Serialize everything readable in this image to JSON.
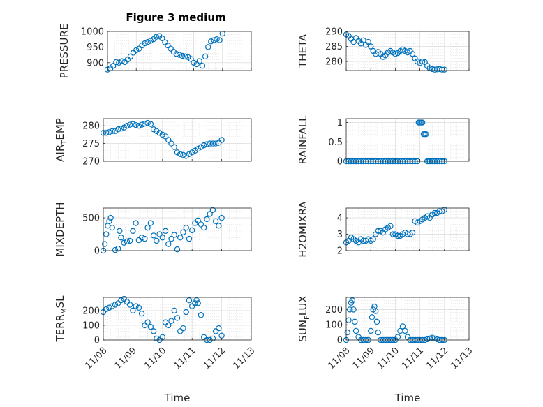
{
  "figure": {
    "title": "Figure 3 medium",
    "marker_color": "#0072BD",
    "marker": "circle",
    "grid": "on (major and minor)"
  },
  "chart_data": [
    {
      "id": "pressure",
      "type": "scatter",
      "ylabel": "PRESSURE",
      "xlim": [
        "11/08",
        "11/13"
      ],
      "ylim": [
        875,
        1000
      ],
      "yticks": [
        "900",
        "950",
        "1000"
      ],
      "ytick_values": [
        900,
        950,
        1000
      ],
      "xticks": [],
      "xlabel": "",
      "x": [
        0.0,
        0.1,
        0.2,
        0.3,
        0.4,
        0.5,
        0.6,
        0.7,
        0.8,
        0.9,
        1.0,
        1.1,
        1.2,
        1.3,
        1.4,
        1.5,
        1.6,
        1.7,
        1.8,
        1.9,
        2.0,
        2.1,
        2.2,
        2.3,
        2.4,
        2.5,
        2.6,
        2.7,
        2.8,
        2.9,
        3.0,
        3.1,
        3.2,
        3.3,
        3.4,
        3.5,
        3.6,
        3.7,
        3.8,
        3.9,
        4.0
      ],
      "y": [
        878,
        882,
        890,
        902,
        900,
        905,
        902,
        910,
        920,
        932,
        940,
        945,
        955,
        962,
        966,
        970,
        975,
        983,
        985,
        978,
        965,
        955,
        945,
        935,
        928,
        925,
        922,
        920,
        918,
        912,
        900,
        895,
        905,
        890,
        920,
        950,
        968,
        972,
        975,
        972,
        993
      ]
    },
    {
      "id": "theta",
      "type": "scatter",
      "ylabel": "THETA",
      "xlim": [
        "11/08",
        "11/13"
      ],
      "ylim": [
        277,
        290
      ],
      "yticks": [
        "280",
        "285",
        "290"
      ],
      "ytick_values": [
        280,
        285,
        290
      ],
      "xticks": [],
      "xlabel": "",
      "x": [
        0.0,
        0.1,
        0.2,
        0.3,
        0.4,
        0.5,
        0.6,
        0.7,
        0.8,
        0.9,
        1.0,
        1.1,
        1.2,
        1.3,
        1.4,
        1.5,
        1.6,
        1.7,
        1.8,
        1.9,
        2.0,
        2.1,
        2.2,
        2.3,
        2.4,
        2.5,
        2.6,
        2.7,
        2.8,
        2.9,
        3.0,
        3.1,
        3.2,
        3.3,
        3.4,
        3.5,
        3.6,
        3.7,
        3.8,
        3.9,
        4.0
      ],
      "y": [
        289,
        288.5,
        287.5,
        286.5,
        287.8,
        286.8,
        286,
        287,
        285.5,
        286.5,
        285,
        283.5,
        282.5,
        283.2,
        282.5,
        281.5,
        282,
        283,
        283.5,
        283,
        282.5,
        282.8,
        283.5,
        284,
        283.5,
        283,
        283.5,
        282.5,
        281,
        280,
        279.5,
        280,
        279.8,
        278.5,
        277.8,
        277.5,
        277.3,
        277.4,
        277.5,
        277.3,
        277.3
      ]
    },
    {
      "id": "air_temp",
      "type": "scatter",
      "ylabel": "AIR_TEMP",
      "ylabel_base": "AIR",
      "ylabel_sub": "T",
      "ylabel_tail": "EMP",
      "xlim": [
        "11/08",
        "11/13"
      ],
      "ylim": [
        270,
        282
      ],
      "yticks": [
        "270",
        "275",
        "280"
      ],
      "ytick_values": [
        270,
        275,
        280
      ],
      "xticks": [],
      "xlabel": "",
      "x": [
        0.0,
        0.1,
        0.2,
        0.3,
        0.4,
        0.5,
        0.6,
        0.7,
        0.8,
        0.9,
        1.0,
        1.1,
        1.2,
        1.3,
        1.4,
        1.5,
        1.6,
        1.7,
        1.8,
        1.9,
        2.0,
        2.1,
        2.2,
        2.3,
        2.4,
        2.5,
        2.6,
        2.7,
        2.8,
        2.9,
        3.0,
        3.1,
        3.2,
        3.3,
        3.4,
        3.5,
        3.6,
        3.7,
        3.8,
        3.9,
        4.0
      ],
      "y": [
        278,
        278,
        278.2,
        278.5,
        278.5,
        279,
        279.2,
        279.5,
        280,
        280.3,
        280.5,
        280.2,
        280,
        280.3,
        280.6,
        280.8,
        280.5,
        279,
        278.5,
        278,
        277.5,
        277,
        276,
        275,
        274,
        272.5,
        272,
        271.8,
        271.5,
        272,
        272.5,
        273,
        273.5,
        274,
        274.5,
        274.8,
        275,
        275,
        275,
        275.2,
        276
      ]
    },
    {
      "id": "rainfall",
      "type": "scatter",
      "ylabel": "RAINFALL",
      "xlim": [
        "11/08",
        "11/13"
      ],
      "ylim": [
        0,
        1.1
      ],
      "yticks": [
        "0",
        "0.5",
        "1"
      ],
      "ytick_values": [
        0,
        0.5,
        1
      ],
      "xticks": [],
      "xlabel": "",
      "x": [
        0.0,
        0.1,
        0.2,
        0.3,
        0.4,
        0.5,
        0.6,
        0.7,
        0.8,
        0.9,
        1.0,
        1.1,
        1.2,
        1.3,
        1.4,
        1.5,
        1.6,
        1.7,
        1.8,
        1.9,
        2.0,
        2.1,
        2.2,
        2.3,
        2.4,
        2.5,
        2.6,
        2.7,
        2.8,
        2.9,
        2.95,
        3.0,
        3.05,
        3.1,
        3.15,
        3.2,
        3.25,
        3.3,
        3.35,
        3.4,
        3.5,
        3.6,
        3.7,
        3.8,
        3.9,
        4.0
      ],
      "y": [
        0,
        0,
        0,
        0,
        0,
        0,
        0,
        0,
        0,
        0,
        0,
        0,
        0,
        0,
        0,
        0,
        0,
        0,
        0,
        0,
        0,
        0,
        0,
        0,
        0,
        0,
        0,
        0,
        0,
        0,
        1,
        1,
        1,
        1,
        0.7,
        0.7,
        0.7,
        0,
        0,
        0,
        0,
        0,
        0,
        0,
        0,
        0
      ]
    },
    {
      "id": "mixdepth",
      "type": "scatter",
      "ylabel": "MIXDEPTH",
      "xlim": [
        "11/08",
        "11/13"
      ],
      "ylim": [
        0,
        650
      ],
      "yticks": [
        "0",
        "500"
      ],
      "ytick_values": [
        0,
        500
      ],
      "xticks": [],
      "xlabel": "",
      "x": [
        0.0,
        0.05,
        0.1,
        0.15,
        0.2,
        0.25,
        0.3,
        0.4,
        0.5,
        0.55,
        0.6,
        0.7,
        0.8,
        0.9,
        1.0,
        1.1,
        1.2,
        1.3,
        1.4,
        1.5,
        1.6,
        1.7,
        1.8,
        1.9,
        2.0,
        2.1,
        2.2,
        2.3,
        2.4,
        2.5,
        2.6,
        2.7,
        2.8,
        2.9,
        3.0,
        3.1,
        3.2,
        3.3,
        3.4,
        3.5,
        3.6,
        3.7,
        3.8,
        3.9,
        4.0
      ],
      "y": [
        0,
        100,
        250,
        380,
        450,
        500,
        350,
        10,
        30,
        300,
        200,
        120,
        140,
        150,
        300,
        420,
        160,
        200,
        180,
        350,
        420,
        230,
        150,
        250,
        200,
        300,
        100,
        180,
        240,
        20,
        200,
        280,
        350,
        180,
        310,
        420,
        460,
        400,
        350,
        480,
        560,
        620,
        450,
        380,
        500
      ]
    },
    {
      "id": "h2omixra",
      "type": "scatter",
      "ylabel": "H2OMIXRA",
      "xlim": [
        "11/08",
        "11/13"
      ],
      "ylim": [
        2,
        4.6
      ],
      "yticks": [
        "2",
        "3",
        "4"
      ],
      "ytick_values": [
        2,
        3,
        4
      ],
      "xticks": [],
      "xlabel": "",
      "x": [
        0.0,
        0.1,
        0.2,
        0.3,
        0.4,
        0.5,
        0.6,
        0.7,
        0.8,
        0.9,
        1.0,
        1.1,
        1.2,
        1.3,
        1.4,
        1.5,
        1.6,
        1.7,
        1.8,
        1.9,
        2.0,
        2.1,
        2.2,
        2.3,
        2.4,
        2.5,
        2.6,
        2.7,
        2.8,
        2.9,
        3.0,
        3.1,
        3.2,
        3.3,
        3.4,
        3.5,
        3.6,
        3.7,
        3.8,
        3.9,
        4.0
      ],
      "y": [
        2.5,
        2.6,
        2.8,
        2.7,
        2.6,
        2.5,
        2.7,
        2.6,
        2.6,
        2.7,
        2.6,
        2.7,
        3.0,
        3.2,
        3.2,
        3.1,
        3.3,
        3.4,
        3.5,
        3.0,
        3.0,
        2.9,
        2.9,
        3.0,
        3.1,
        3.0,
        3.0,
        3.1,
        3.8,
        3.7,
        3.8,
        3.9,
        4.0,
        4.1,
        4.0,
        4.2,
        4.3,
        4.3,
        4.4,
        4.4,
        4.5
      ]
    },
    {
      "id": "terr_msl",
      "type": "scatter",
      "ylabel": "TERR_MSL",
      "ylabel_base": "TERR",
      "ylabel_sub": "M",
      "ylabel_tail": "SL",
      "xlim": [
        "11/08",
        "11/13"
      ],
      "ylim": [
        0,
        290
      ],
      "yticks": [
        "0",
        "100",
        "200"
      ],
      "ytick_values": [
        0,
        100,
        200
      ],
      "xticks": [
        "11/08",
        "11/09",
        "11/10",
        "11/11",
        "11/12",
        "11/13"
      ],
      "xlabel": "Time",
      "x": [
        0.0,
        0.1,
        0.2,
        0.3,
        0.4,
        0.5,
        0.6,
        0.7,
        0.8,
        0.9,
        1.0,
        1.1,
        1.2,
        1.3,
        1.4,
        1.5,
        1.6,
        1.7,
        1.8,
        1.9,
        2.0,
        2.1,
        2.2,
        2.3,
        2.4,
        2.5,
        2.6,
        2.7,
        2.8,
        2.9,
        3.0,
        3.1,
        3.15,
        3.2,
        3.3,
        3.4,
        3.5,
        3.6,
        3.7,
        3.8,
        3.9,
        4.0
      ],
      "y": [
        190,
        210,
        220,
        230,
        240,
        250,
        270,
        280,
        260,
        240,
        200,
        230,
        220,
        180,
        100,
        120,
        90,
        60,
        10,
        0,
        20,
        120,
        100,
        130,
        200,
        150,
        60,
        80,
        190,
        270,
        230,
        250,
        270,
        250,
        170,
        20,
        0,
        0,
        10,
        60,
        80,
        30
      ]
    },
    {
      "id": "sun_flux",
      "type": "scatter",
      "ylabel": "SUN_FLUX",
      "ylabel_base": "SUN",
      "ylabel_sub": "F",
      "ylabel_tail": "LUX",
      "xlim": [
        "11/08",
        "11/13"
      ],
      "ylim": [
        0,
        280
      ],
      "yticks": [
        "0",
        "100",
        "200"
      ],
      "ytick_values": [
        0,
        100,
        200
      ],
      "xticks": [
        "11/08",
        "11/09",
        "11/10",
        "11/11",
        "11/12",
        "11/13"
      ],
      "xlabel": "Time",
      "x": [
        0.0,
        0.05,
        0.1,
        0.15,
        0.2,
        0.25,
        0.3,
        0.35,
        0.4,
        0.5,
        0.6,
        0.7,
        0.8,
        0.9,
        1.0,
        1.05,
        1.1,
        1.15,
        1.2,
        1.25,
        1.3,
        1.4,
        1.5,
        1.6,
        1.7,
        1.8,
        1.9,
        2.0,
        2.1,
        2.2,
        2.3,
        2.4,
        2.5,
        2.6,
        2.7,
        2.8,
        2.9,
        3.0,
        3.1,
        3.2,
        3.3,
        3.4,
        3.5,
        3.6,
        3.7,
        3.8,
        3.9,
        4.0
      ],
      "y": [
        0,
        50,
        130,
        200,
        245,
        260,
        200,
        120,
        60,
        20,
        0,
        0,
        0,
        0,
        60,
        150,
        200,
        220,
        190,
        120,
        50,
        0,
        0,
        0,
        0,
        0,
        0,
        0,
        20,
        60,
        90,
        60,
        20,
        0,
        0,
        0,
        0,
        0,
        0,
        0,
        5,
        10,
        15,
        10,
        5,
        0,
        0,
        0
      ]
    }
  ]
}
